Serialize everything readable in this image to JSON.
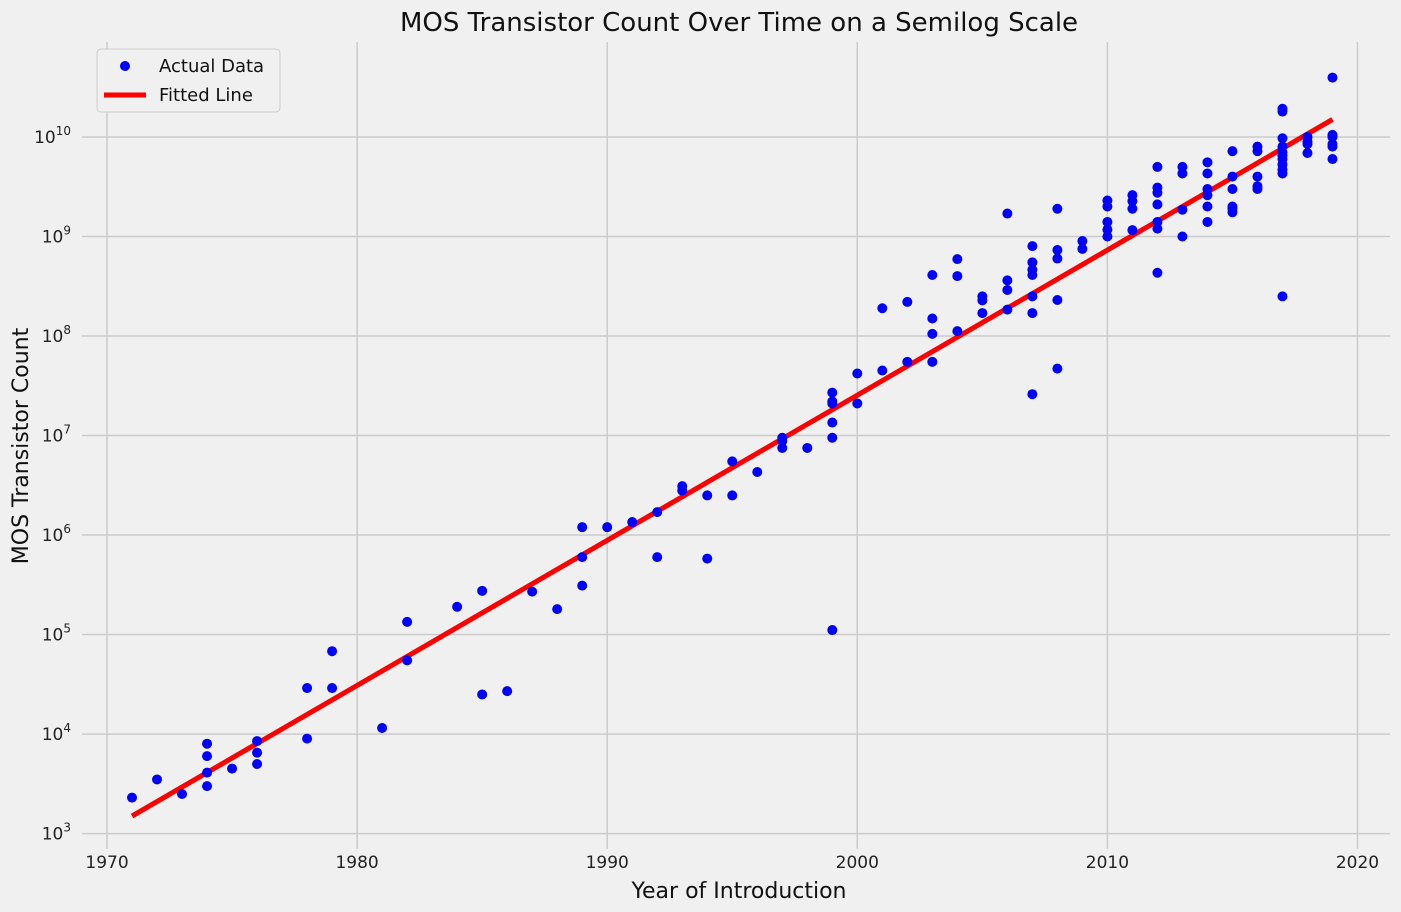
{
  "chart_data": {
    "type": "scatter",
    "title": "MOS Transistor Count Over Time on a Semilog Scale",
    "xlabel": "Year of Introduction",
    "ylabel": "MOS Transistor Count",
    "y_scale": "log",
    "grid": true,
    "legend_position": "top-left",
    "xlim": [
      1969,
      2021.3
    ],
    "ylim": [
      700,
      90000000000
    ],
    "x_ticks": [
      1970,
      1980,
      1990,
      2000,
      2010,
      2020
    ],
    "x_tick_labels": [
      "1970",
      "1980",
      "1990",
      "2000",
      "2010",
      "2020"
    ],
    "y_ticks": [
      1000,
      10000,
      100000,
      1000000,
      10000000,
      100000000,
      1000000000,
      10000000000
    ],
    "y_tick_exponents": [
      "3",
      "4",
      "5",
      "6",
      "7",
      "8",
      "9",
      "10"
    ],
    "y_tick_base": "10",
    "colors": {
      "points": "#0000ff",
      "fit": "#ff0000",
      "background": "#f0f0f0",
      "grid": "#cbcbcb"
    },
    "series": [
      {
        "name": "Actual Data",
        "kind": "scatter",
        "points": [
          [
            1971,
            2300
          ],
          [
            1972,
            3500
          ],
          [
            1973,
            2500
          ],
          [
            1974,
            3000
          ],
          [
            1974,
            4100
          ],
          [
            1974,
            6000
          ],
          [
            1974,
            8000
          ],
          [
            1975,
            4500
          ],
          [
            1976,
            5000
          ],
          [
            1976,
            6500
          ],
          [
            1976,
            8500
          ],
          [
            1978,
            9000
          ],
          [
            1978,
            29000
          ],
          [
            1979,
            29000
          ],
          [
            1979,
            68000
          ],
          [
            1981,
            11500
          ],
          [
            1982,
            55000
          ],
          [
            1982,
            134000
          ],
          [
            1984,
            190000
          ],
          [
            1985,
            25000
          ],
          [
            1985,
            275000
          ],
          [
            1986,
            27000
          ],
          [
            1987,
            270000
          ],
          [
            1988,
            180000
          ],
          [
            1989,
            310000
          ],
          [
            1989,
            600000
          ],
          [
            1989,
            1200000
          ],
          [
            1990,
            1200000
          ],
          [
            1991,
            1350000
          ],
          [
            1992,
            600000
          ],
          [
            1992,
            1700000
          ],
          [
            1993,
            2800000
          ],
          [
            1993,
            3100000
          ],
          [
            1994,
            580000
          ],
          [
            1994,
            2500000
          ],
          [
            1995,
            2500000
          ],
          [
            1995,
            5500000
          ],
          [
            1996,
            4300000
          ],
          [
            1997,
            7500000
          ],
          [
            1997,
            8800000
          ],
          [
            1997,
            9500000
          ],
          [
            1998,
            7500000
          ],
          [
            1999,
            111000
          ],
          [
            1999,
            9500000
          ],
          [
            1999,
            13500000
          ],
          [
            1999,
            21000000
          ],
          [
            1999,
            22000000
          ],
          [
            1999,
            27000000
          ],
          [
            2000,
            21000000
          ],
          [
            2000,
            42000000
          ],
          [
            2001,
            45000000
          ],
          [
            2001,
            190000000
          ],
          [
            2002,
            55000000
          ],
          [
            2002,
            220000000
          ],
          [
            2003,
            55000000
          ],
          [
            2003,
            105000000
          ],
          [
            2003,
            150000000
          ],
          [
            2003,
            410000000
          ],
          [
            2004,
            112000000
          ],
          [
            2004,
            400000000
          ],
          [
            2004,
            592000000
          ],
          [
            2005,
            170000000
          ],
          [
            2005,
            228000000
          ],
          [
            2005,
            250000000
          ],
          [
            2006,
            184000000
          ],
          [
            2006,
            290000000
          ],
          [
            2006,
            362000000
          ],
          [
            2006,
            1700000000
          ],
          [
            2007,
            26000000
          ],
          [
            2007,
            170000000
          ],
          [
            2007,
            250000000
          ],
          [
            2007,
            410000000
          ],
          [
            2007,
            463000000
          ],
          [
            2007,
            550000000
          ],
          [
            2007,
            800000000
          ],
          [
            2008,
            47000000
          ],
          [
            2008,
            230000000
          ],
          [
            2008,
            600000000
          ],
          [
            2008,
            731000000
          ],
          [
            2008,
            1900000000
          ],
          [
            2009,
            750000000
          ],
          [
            2009,
            900000000
          ],
          [
            2010,
            1000000000
          ],
          [
            2010,
            1170000000
          ],
          [
            2010,
            1400000000
          ],
          [
            2010,
            2000000000
          ],
          [
            2010,
            2300000000
          ],
          [
            2011,
            1160000000
          ],
          [
            2011,
            1900000000
          ],
          [
            2011,
            2270000000
          ],
          [
            2011,
            2600000000
          ],
          [
            2012,
            432000000
          ],
          [
            2012,
            1200000000
          ],
          [
            2012,
            1400000000
          ],
          [
            2012,
            2100000000
          ],
          [
            2012,
            2750000000
          ],
          [
            2012,
            3100000000
          ],
          [
            2012,
            5000000000
          ],
          [
            2013,
            1000000000
          ],
          [
            2013,
            1860000000
          ],
          [
            2013,
            4300000000
          ],
          [
            2013,
            5000000000
          ],
          [
            2014,
            1400000000
          ],
          [
            2014,
            2000000000
          ],
          [
            2014,
            2600000000
          ],
          [
            2014,
            3000000000
          ],
          [
            2014,
            4300000000
          ],
          [
            2014,
            5560000000
          ],
          [
            2015,
            1750000000
          ],
          [
            2015,
            1900000000
          ],
          [
            2015,
            2000000000
          ],
          [
            2015,
            3000000000
          ],
          [
            2015,
            4000000000
          ],
          [
            2015,
            7200000000
          ],
          [
            2016,
            3000000000
          ],
          [
            2016,
            3200000000
          ],
          [
            2016,
            4000000000
          ],
          [
            2016,
            7200000000
          ],
          [
            2016,
            8000000000
          ],
          [
            2017,
            250000000
          ],
          [
            2017,
            4300000000
          ],
          [
            2017,
            4700000000
          ],
          [
            2017,
            5300000000
          ],
          [
            2017,
            6000000000
          ],
          [
            2017,
            6500000000
          ],
          [
            2017,
            7000000000
          ],
          [
            2017,
            8000000000
          ],
          [
            2017,
            9700000000
          ],
          [
            2017,
            18000000000
          ],
          [
            2017,
            19200000000
          ],
          [
            2018,
            6900000000
          ],
          [
            2018,
            8500000000
          ],
          [
            2018,
            9000000000
          ],
          [
            2018,
            10000000000
          ],
          [
            2019,
            6000000000
          ],
          [
            2019,
            8000000000
          ],
          [
            2019,
            8500000000
          ],
          [
            2019,
            10000000000
          ],
          [
            2019,
            10500000000
          ],
          [
            2019,
            39500000000
          ]
        ]
      },
      {
        "name": "Fitted Line",
        "kind": "line",
        "points": [
          [
            1971,
            1500
          ],
          [
            2019,
            15000000000
          ]
        ]
      }
    ]
  }
}
